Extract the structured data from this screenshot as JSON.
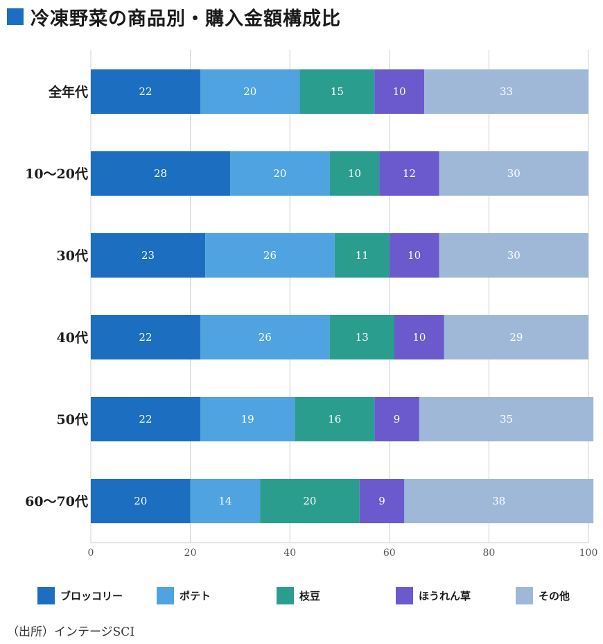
{
  "header": {
    "title": "冷凍野菜の商品別・購入金額構成比"
  },
  "source": "（出所）インテージSCI",
  "chart_data": {
    "type": "bar",
    "orientation": "horizontal",
    "stacked": true,
    "title": "冷凍野菜の商品別・購入金額構成比",
    "xlabel": "",
    "ylabel": "",
    "xlim": [
      0,
      100
    ],
    "xticks": [
      0,
      20,
      40,
      60,
      80,
      100
    ],
    "grid": true,
    "legend_position": "bottom",
    "categories": [
      "全年代",
      "10〜20代",
      "30代",
      "40代",
      "50代",
      "60〜70代"
    ],
    "series": [
      {
        "name": "ブロッコリー",
        "color": "#1b6ec0",
        "values": [
          22,
          28,
          23,
          22,
          22,
          20
        ]
      },
      {
        "name": "ポテト",
        "color": "#4fa3e0",
        "values": [
          20,
          20,
          26,
          26,
          19,
          14
        ]
      },
      {
        "name": "枝豆",
        "color": "#2a9d8f",
        "values": [
          15,
          10,
          11,
          13,
          16,
          20
        ]
      },
      {
        "name": "ほうれん草",
        "color": "#6a5acd",
        "values": [
          10,
          12,
          10,
          10,
          9,
          9
        ]
      },
      {
        "name": "その他",
        "color": "#9fb8d8",
        "values": [
          33,
          30,
          30,
          29,
          35,
          38
        ]
      }
    ]
  }
}
